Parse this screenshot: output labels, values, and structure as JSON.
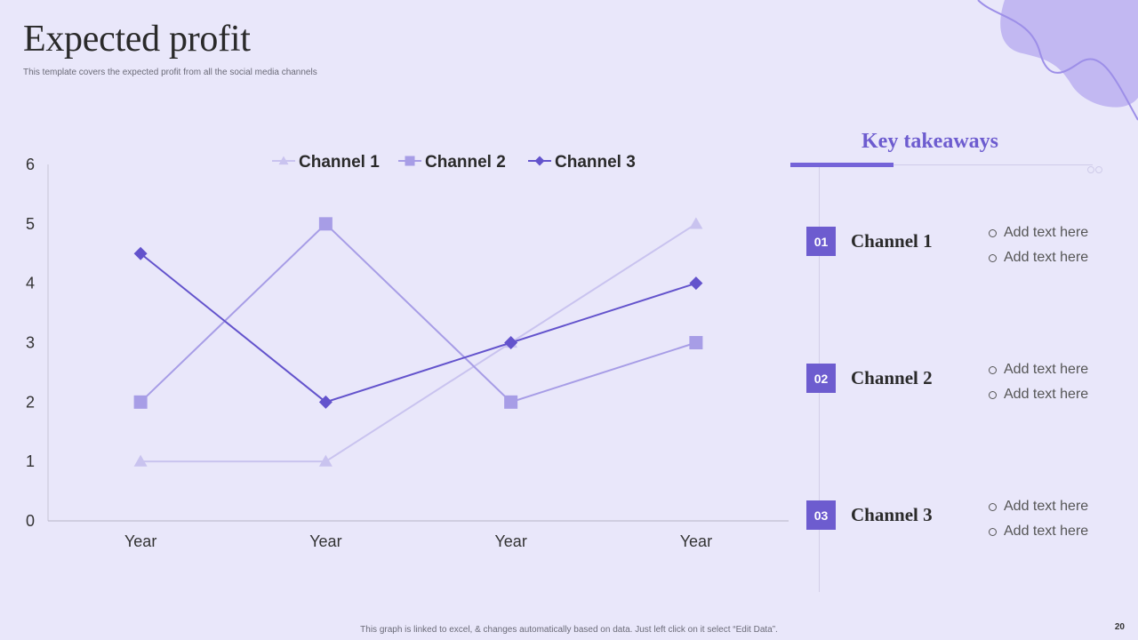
{
  "slide": {
    "title": "Expected profit",
    "subtitle": "This template covers the expected profit from all the social media channels",
    "footer": "This graph is linked to excel, & changes automatically based on data. Just left click on it select “Edit Data”.",
    "page_number": "20"
  },
  "colors": {
    "background": "#e9e7fa",
    "accent": "#6d5ccf",
    "channel1": "#c9c3ef",
    "channel2": "#a79de6",
    "channel3": "#6353cc"
  },
  "chart_data": {
    "type": "line",
    "categories": [
      "Year",
      "Year",
      "Year",
      "Year"
    ],
    "series": [
      {
        "name": "Channel 1",
        "marker": "triangle",
        "values": [
          1,
          1,
          3,
          5
        ]
      },
      {
        "name": "Channel 2",
        "marker": "square",
        "values": [
          2,
          5,
          2,
          3
        ]
      },
      {
        "name": "Channel 3",
        "marker": "diamond",
        "values": [
          4.5,
          2,
          3,
          4
        ]
      }
    ],
    "ylim": [
      0,
      6
    ],
    "yticks": [
      "0",
      "1",
      "2",
      "3",
      "4",
      "5",
      "6"
    ],
    "legend_position": "top",
    "grid": false
  },
  "takeaways": {
    "title": "Key takeaways",
    "items": [
      {
        "number": "01",
        "name": "Channel 1",
        "bullets": [
          "Add text here",
          "Add text here"
        ]
      },
      {
        "number": "02",
        "name": "Channel 2",
        "bullets": [
          "Add text here",
          "Add text here"
        ]
      },
      {
        "number": "03",
        "name": "Channel 3",
        "bullets": [
          "Add text here",
          "Add text here"
        ]
      }
    ]
  }
}
